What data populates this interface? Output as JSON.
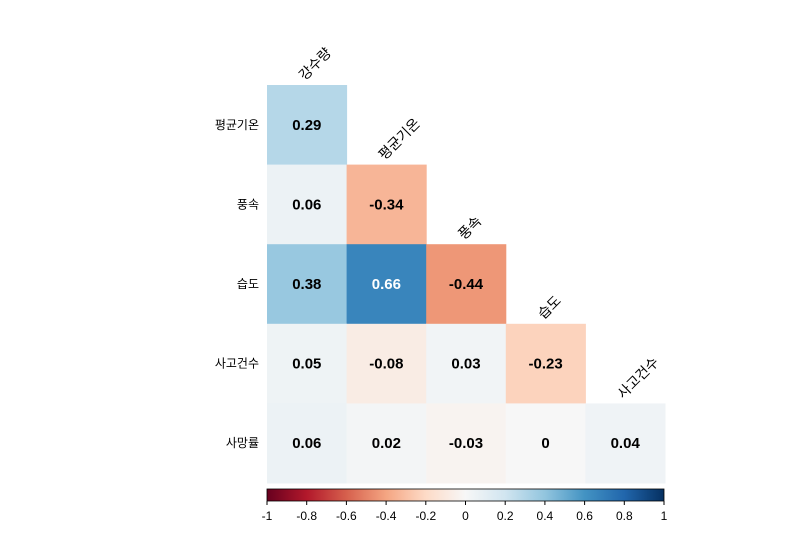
{
  "chart_data": {
    "type": "heatmap",
    "variables": [
      "강수량",
      "평균기온",
      "풍속",
      "습도",
      "사고건수",
      "사망률"
    ],
    "row_labels": [
      "평균기온",
      "풍속",
      "습도",
      "사고건수",
      "사망률"
    ],
    "diagonal_labels": [
      "강수량",
      "평균기온",
      "풍속",
      "습도",
      "사고건수"
    ],
    "cells": [
      [
        0.29
      ],
      [
        0.06,
        -0.34
      ],
      [
        0.38,
        0.66,
        -0.44
      ],
      [
        0.05,
        -0.08,
        0.03,
        -0.23
      ],
      [
        0.06,
        0.02,
        -0.03,
        0,
        0.04
      ]
    ],
    "cell_text": [
      [
        "0.29"
      ],
      [
        "0.06",
        "-0.34"
      ],
      [
        "0.38",
        "0.66",
        "-0.44"
      ],
      [
        "0.05",
        "-0.08",
        "0.03",
        "-0.23"
      ],
      [
        "0.06",
        "0.02",
        "-0.03",
        "0",
        "0.04"
      ]
    ],
    "colorbar": {
      "range": [
        -1,
        1
      ],
      "ticks": [
        "-1",
        "-0.8",
        "-0.6",
        "-0.4",
        "-0.2",
        "0",
        "0.2",
        "0.4",
        "0.6",
        "0.8",
        "1"
      ],
      "placement": "bottom"
    },
    "colors": {
      "palette": [
        "#67001F",
        "#B2182B",
        "#D6604D",
        "#F4A582",
        "#FDDBC7",
        "#F7F7F7",
        "#D1E5F0",
        "#92C5DE",
        "#4393C3",
        "#2166AC",
        "#053061"
      ]
    },
    "grid": false
  }
}
